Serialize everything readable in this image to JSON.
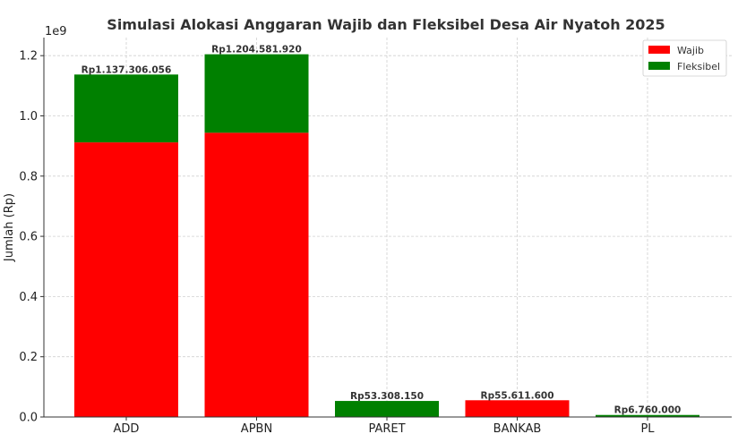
{
  "chart_data": {
    "type": "bar",
    "stacked": true,
    "title": "Simulasi Alokasi Anggaran Wajib dan Fleksibel Desa Air Nyatoh 2025",
    "xlabel": "",
    "ylabel": "Jumlah (Rp)",
    "y_offset_text": "1e9",
    "ylim": [
      0,
      1260000000.0
    ],
    "yticks": [
      0,
      200000000.0,
      400000000.0,
      600000000.0,
      800000000.0,
      1000000000.0,
      1200000000.0
    ],
    "ytick_labels": [
      "0.0",
      "0.2",
      "0.4",
      "0.6",
      "0.8",
      "1.0",
      "1.2"
    ],
    "grid": true,
    "legend_position": "top-right",
    "categories": [
      "ADD",
      "APBN",
      "PARET",
      "BANKAB",
      "PL"
    ],
    "series": [
      {
        "name": "Wajib",
        "color": "#ff0000",
        "values": [
          912000000,
          944000000,
          0,
          55611600,
          0
        ]
      },
      {
        "name": "Fleksibel",
        "color": "#008000",
        "values": [
          225306056,
          260581920,
          53308150,
          0,
          6760000
        ]
      }
    ],
    "data_labels": [
      "Rp1.137.306.056",
      "Rp1.204.581.920",
      "Rp53.308.150",
      "Rp55.611.600",
      "Rp6.760.000"
    ]
  }
}
